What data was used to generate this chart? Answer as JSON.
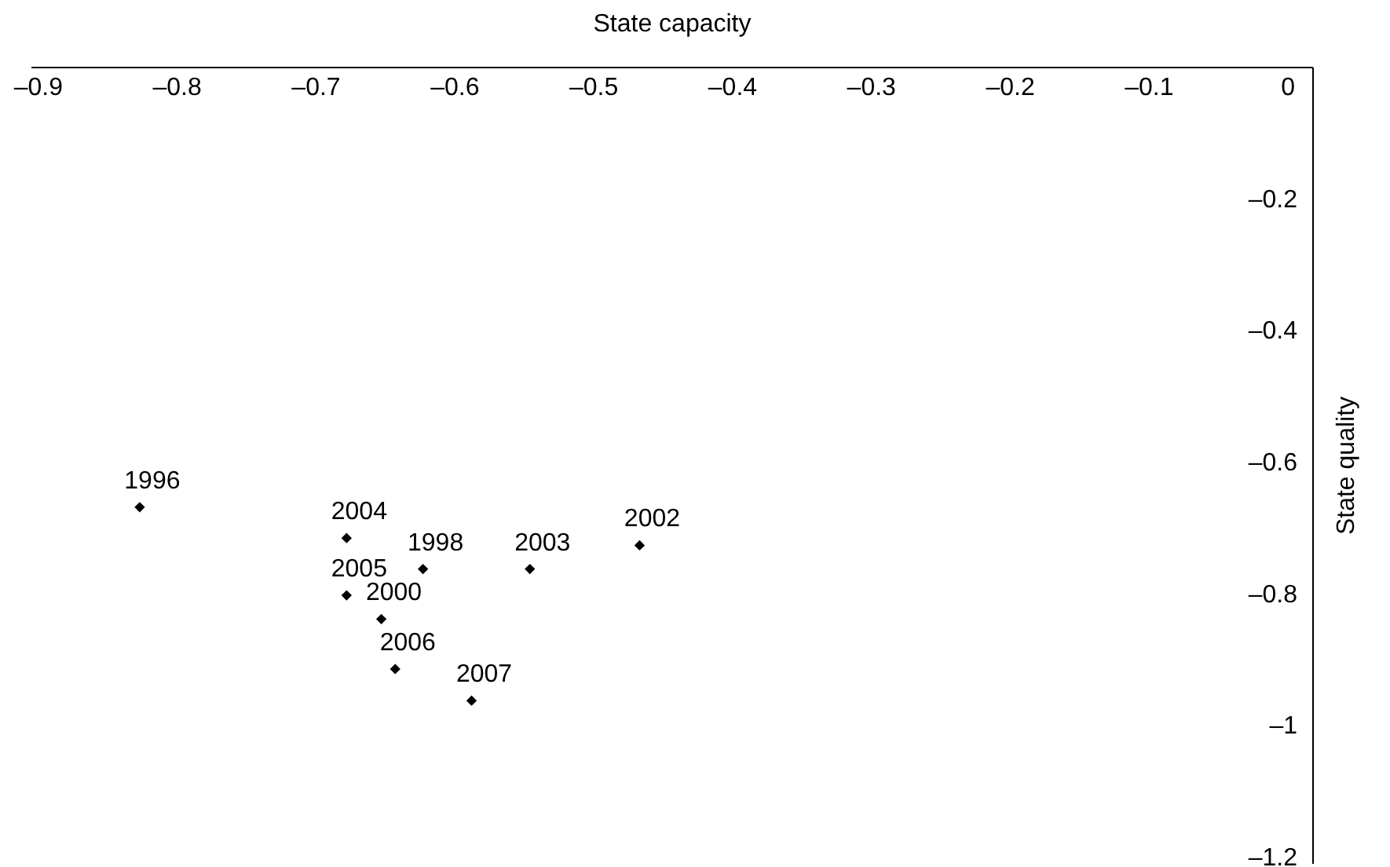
{
  "chart_data": {
    "type": "scatter",
    "xlabel": "State capacity",
    "ylabel": "State quality",
    "x": [
      -0.827,
      -0.623,
      -0.653,
      -0.467,
      -0.546,
      -0.678,
      -0.678,
      -0.643,
      -0.588
    ],
    "values": [
      -0.668,
      -0.762,
      -0.838,
      -0.726,
      -0.762,
      -0.715,
      -0.802,
      -0.914,
      -0.962
    ],
    "color": "#000000",
    "marker": "diamond",
    "annotations": [
      {
        "text": "1996",
        "x": -0.827,
        "y": -0.668
      },
      {
        "text": "1998",
        "x": -0.623,
        "y": -0.762
      },
      {
        "text": "2000",
        "x": -0.653,
        "y": -0.838
      },
      {
        "text": "2002",
        "x": -0.467,
        "y": -0.726
      },
      {
        "text": "2003",
        "x": -0.546,
        "y": -0.762
      },
      {
        "text": "2004",
        "x": -0.678,
        "y": -0.715
      },
      {
        "text": "2005",
        "x": -0.678,
        "y": -0.802
      },
      {
        "text": "2006",
        "x": -0.643,
        "y": -0.914
      },
      {
        "text": "2007",
        "x": -0.588,
        "y": -0.962
      }
    ],
    "xlim": [
      -0.905,
      0.018
    ],
    "ylim": [
      -1.21,
      0
    ],
    "xticks": [
      {
        "value": -0.9,
        "label": "–0.9"
      },
      {
        "value": -0.8,
        "label": "–0.8"
      },
      {
        "value": -0.7,
        "label": "–0.7"
      },
      {
        "value": -0.6,
        "label": "–0.6"
      },
      {
        "value": -0.5,
        "label": "–0.5"
      },
      {
        "value": -0.4,
        "label": "–0.4"
      },
      {
        "value": -0.3,
        "label": "–0.3"
      },
      {
        "value": -0.2,
        "label": "–0.2"
      },
      {
        "value": -0.1,
        "label": "–0.1"
      },
      0
    ],
    "yticks": [
      {
        "value": -0.2,
        "label": "–0.2"
      },
      {
        "value": -0.4,
        "label": "–0.4"
      },
      {
        "value": -0.6,
        "label": "–0.6"
      },
      {
        "value": -0.8,
        "label": "–0.8"
      },
      {
        "value": -1,
        "label": "–1"
      },
      {
        "value": -1.2,
        "label": "–1.2"
      }
    ],
    "grid": false
  }
}
